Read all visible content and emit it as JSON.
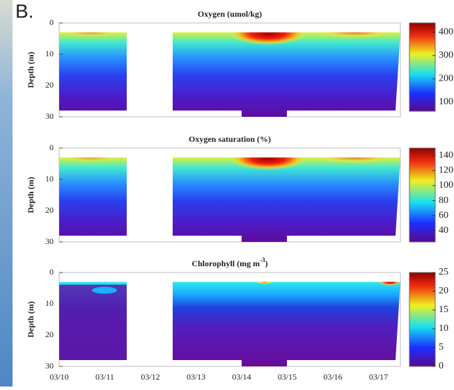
{
  "label": "B.",
  "chart_data": [
    {
      "type": "heatmap",
      "title": "Oxygen (umol/kg)",
      "y_label": "Depth (m)",
      "ylim": [
        0,
        30
      ],
      "yticks": [
        0,
        10,
        20,
        30
      ],
      "colorbar_lim": [
        60,
        440
      ],
      "colorbar_ticks": [
        100,
        200,
        300,
        400
      ]
    },
    {
      "type": "heatmap",
      "title": "Oxygen saturation (%)",
      "y_label": "Depth (m)",
      "ylim": [
        0,
        30
      ],
      "yticks": [
        0,
        10,
        20,
        30
      ],
      "colorbar_lim": [
        25,
        150
      ],
      "colorbar_ticks": [
        40,
        60,
        80,
        100,
        120,
        140
      ]
    },
    {
      "type": "heatmap",
      "title": "Chlorophyll (mg m",
      "title_sup": "-3",
      "title_end": ")",
      "y_label": "Depth (m)",
      "ylim": [
        0,
        30
      ],
      "yticks": [
        0,
        10,
        20,
        30
      ],
      "colorbar_lim": [
        0,
        25
      ],
      "colorbar_ticks": [
        0,
        5,
        10,
        15,
        20,
        25
      ],
      "xtick_labels": [
        "03/10",
        "03/11",
        "03/12",
        "03/13",
        "03/14",
        "03/15",
        "03/16",
        "03/17"
      ]
    }
  ]
}
